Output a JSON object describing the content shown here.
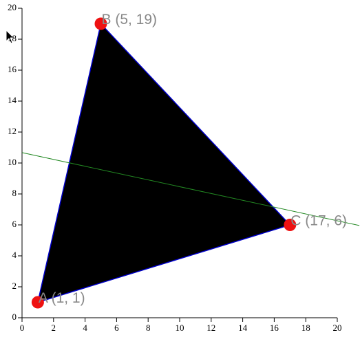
{
  "chart_data": {
    "type": "triangle",
    "points": [
      {
        "label": "A (1, 1)",
        "x": 1,
        "y": 1
      },
      {
        "label": "B (5, 19)",
        "x": 5,
        "y": 19
      },
      {
        "label": "C (17, 6)",
        "x": 17,
        "y": 6
      }
    ],
    "fill": "#000000",
    "edge_color": "#0000cc",
    "point_color": "#ee1111",
    "line": {
      "color": "#228822",
      "x": [
        0,
        21.4
      ],
      "y": [
        10.67,
        5.96
      ]
    },
    "xlim": [
      0,
      20
    ],
    "ylim": [
      0,
      20
    ],
    "xticks": [
      0,
      2,
      4,
      6,
      8,
      10,
      12,
      14,
      16,
      18,
      20
    ],
    "yticks": [
      0,
      2,
      4,
      6,
      8,
      10,
      12,
      14,
      16,
      18,
      20
    ]
  }
}
